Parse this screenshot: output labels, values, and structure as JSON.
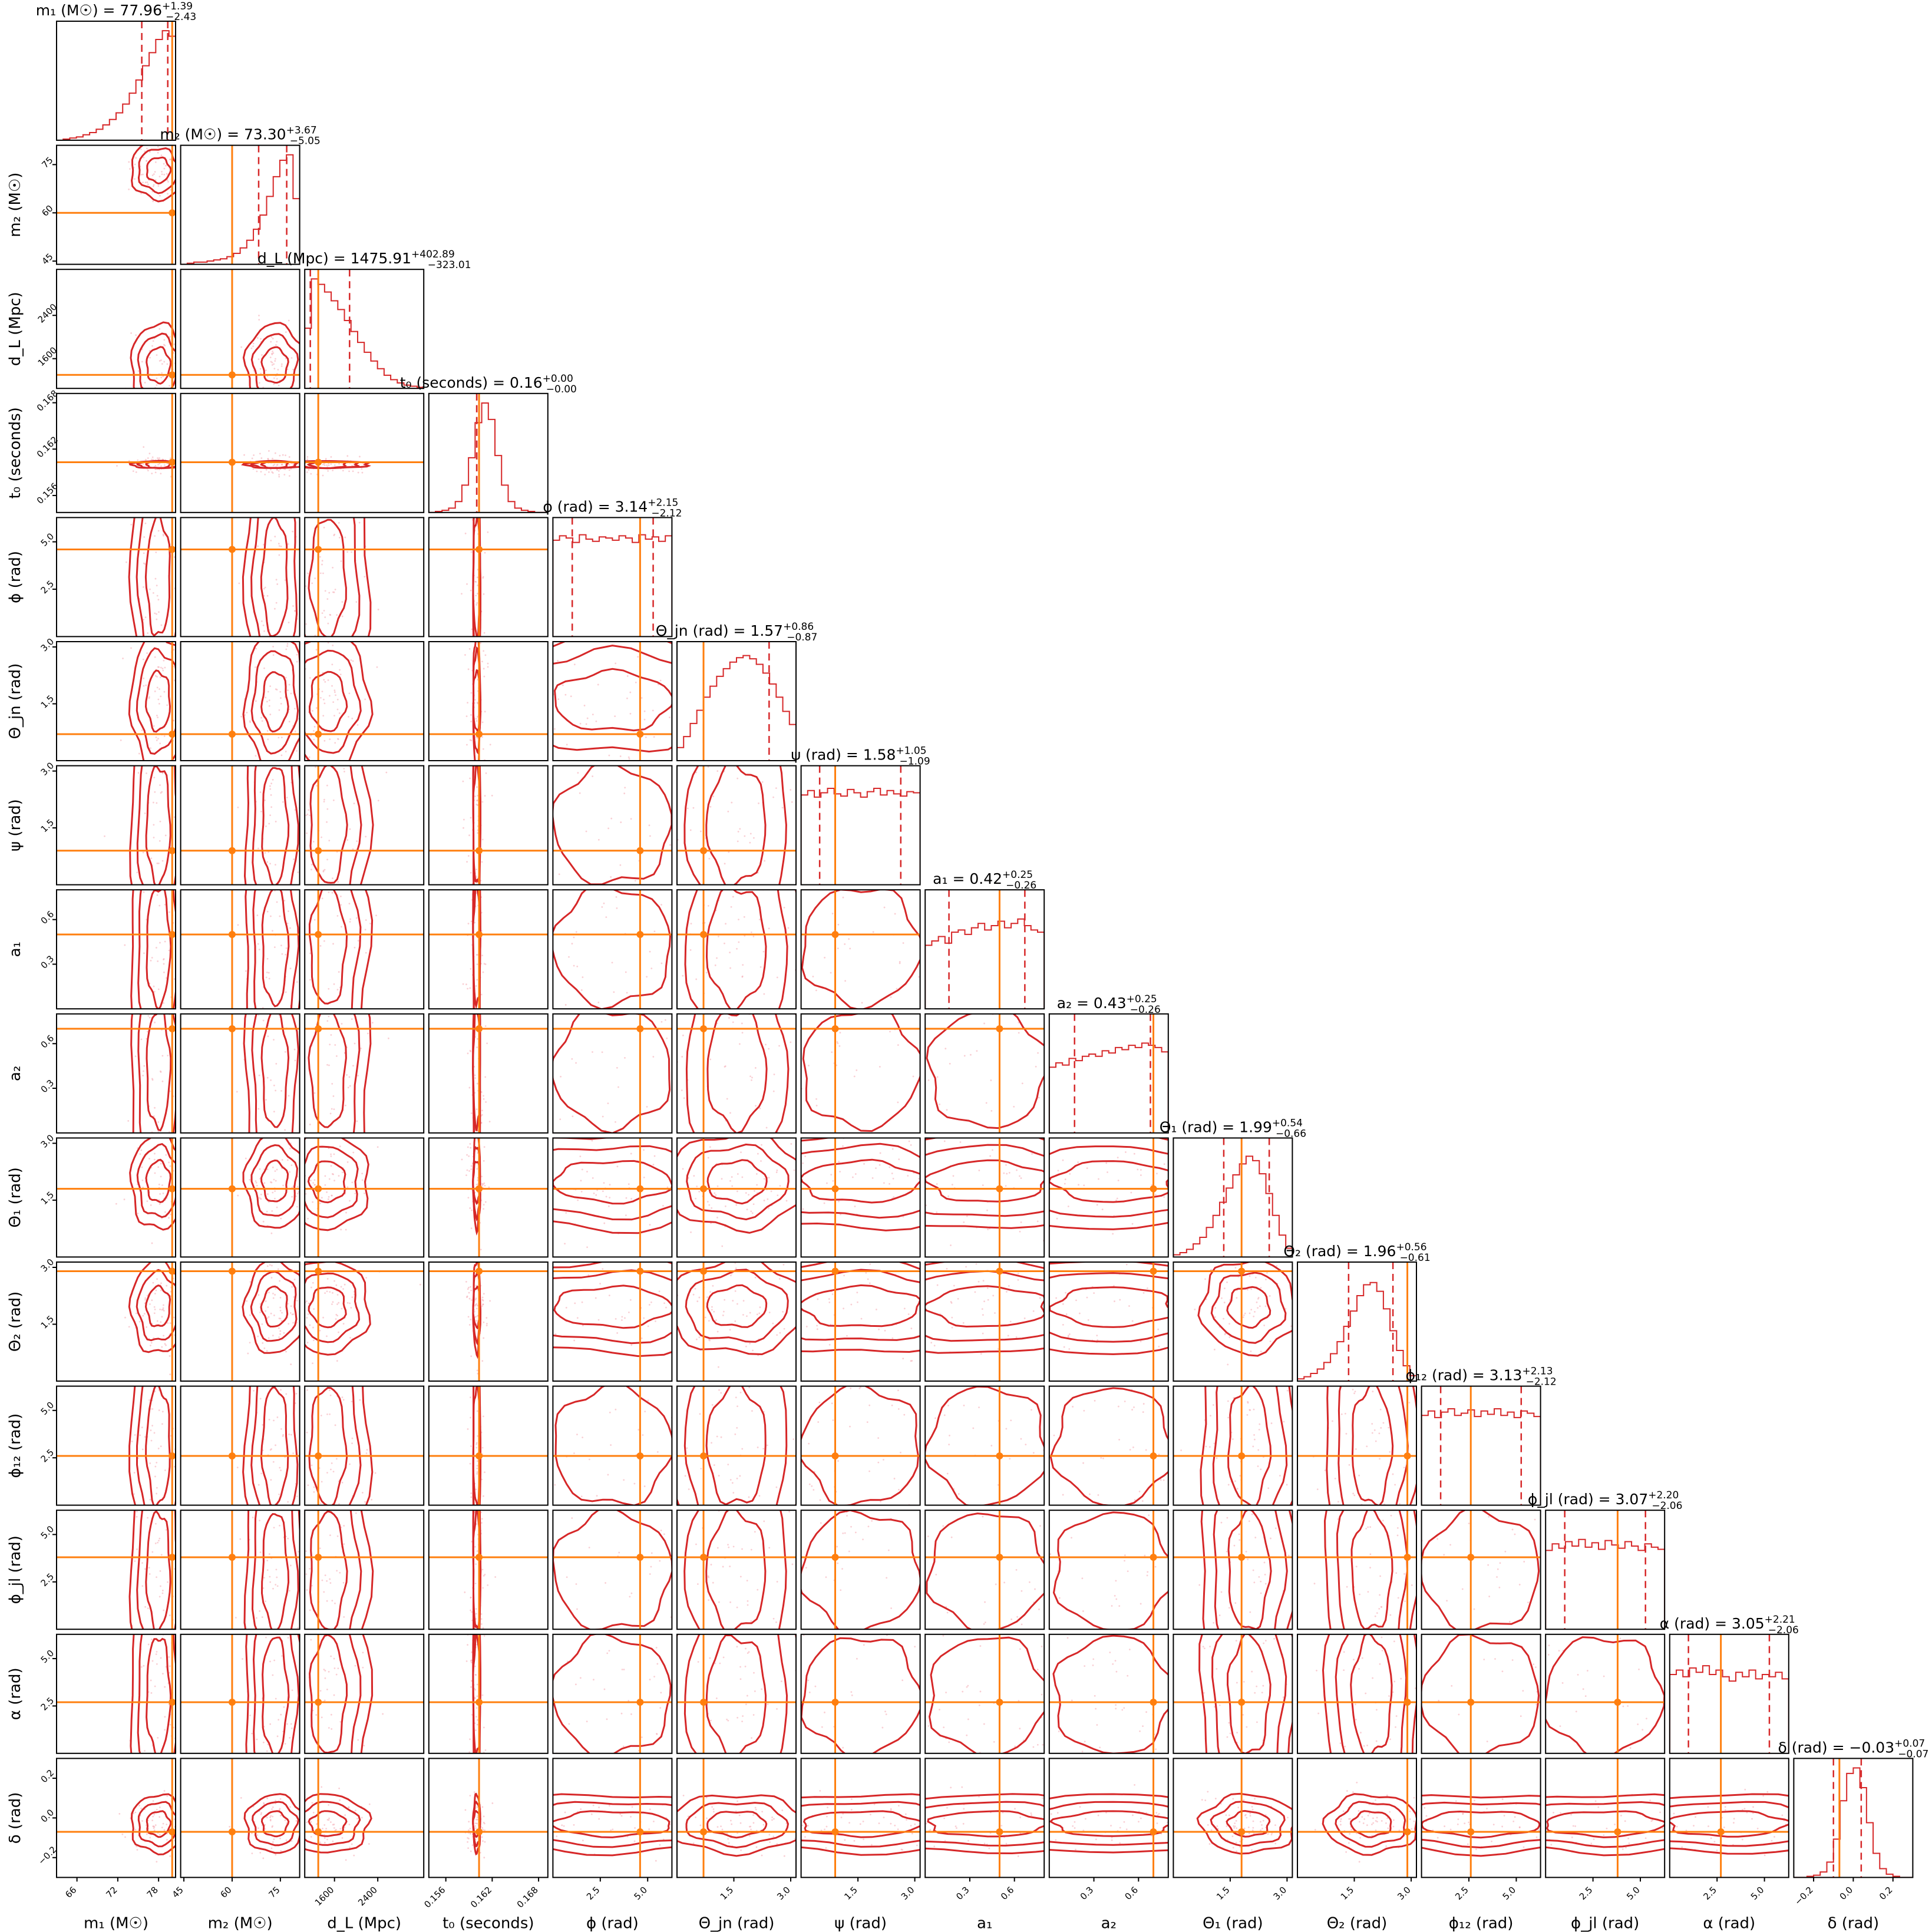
{
  "chart_data": {
    "type": "corner",
    "colors": {
      "posterior": "#d62728",
      "injection": "#ff7f0e",
      "samples": "#f4a7b1"
    },
    "parameters": [
      {
        "key": "m1",
        "label": "m₁ (M☉)",
        "title_main": "m₁ (M☉) = 77.96",
        "title_plus": "+1.39",
        "title_minus": "−2.43",
        "median": 77.96,
        "plus": 1.39,
        "minus": 2.43,
        "injected": 80.0,
        "range": [
          63,
          80.5
        ],
        "ticks": [
          66,
          72,
          78
        ],
        "tick_labels": [
          "66",
          "72",
          "78"
        ],
        "hist_shape": "rising",
        "hist": [
          0.0,
          0.01,
          0.02,
          0.03,
          0.05,
          0.07,
          0.1,
          0.14,
          0.19,
          0.25,
          0.33,
          0.43,
          0.55,
          0.68,
          0.8,
          0.92,
          1.0,
          0.95
        ]
      },
      {
        "key": "m2",
        "label": "m₂ (M☉)",
        "title_main": "m₂ (M☉) = 73.30",
        "title_plus": "+3.67",
        "title_minus": "−5.05",
        "median": 73.3,
        "plus": 3.67,
        "minus": 5.05,
        "injected": 60.0,
        "range": [
          44,
          81
        ],
        "ticks": [
          45,
          60,
          75
        ],
        "tick_labels": [
          "45",
          "60",
          "75"
        ],
        "hist_shape": "rising",
        "hist": [
          0.0,
          0.01,
          0.02,
          0.02,
          0.03,
          0.04,
          0.05,
          0.07,
          0.1,
          0.15,
          0.22,
          0.32,
          0.45,
          0.62,
          0.8,
          0.95,
          1.0,
          0.6
        ]
      },
      {
        "key": "dL",
        "label": "d_L (Mpc)",
        "title_main": "d_L (Mpc) = 1475.91",
        "title_plus": "+402.89",
        "title_minus": "−323.01",
        "median": 1475.91,
        "plus": 402.89,
        "minus": 323.01,
        "injected": 1300.0,
        "range": [
          1050,
          3250
        ],
        "ticks": [
          1600,
          2400
        ],
        "tick_labels": [
          "1600",
          "2400"
        ],
        "hist_shape": "falling",
        "hist": [
          0.55,
          1.0,
          0.95,
          0.88,
          0.8,
          0.72,
          0.62,
          0.52,
          0.42,
          0.33,
          0.25,
          0.18,
          0.12,
          0.08,
          0.05,
          0.03,
          0.02,
          0.01
        ]
      },
      {
        "key": "t0",
        "label": "t₀ (seconds)",
        "title_main": "t₀ (seconds) = 0.16",
        "title_plus": "+0.00",
        "title_minus": "−0.00",
        "median": 0.16,
        "plus": 0.0,
        "minus": 0.0,
        "injected": 0.1603,
        "range": [
          0.1538,
          0.1692
        ],
        "ticks": [
          0.156,
          0.162,
          0.168
        ],
        "tick_labels": [
          "0.156",
          "0.162",
          "0.168"
        ],
        "hist_shape": "peaked",
        "hist": [
          0.0,
          0.01,
          0.02,
          0.04,
          0.1,
          0.25,
          0.5,
          0.82,
          1.0,
          0.85,
          0.52,
          0.25,
          0.1,
          0.04,
          0.02,
          0.01,
          0.0,
          0.0
        ]
      },
      {
        "key": "phi",
        "label": "ϕ (rad)",
        "title_main": "ϕ (rad) = 3.14",
        "title_plus": "+2.15",
        "title_minus": "−2.12",
        "median": 3.14,
        "plus": 2.15,
        "minus": 2.12,
        "injected": 4.6,
        "range": [
          0,
          6.28
        ],
        "ticks": [
          2.5,
          5.0
        ],
        "tick_labels": [
          "2.5",
          "5.0"
        ],
        "hist_shape": "flat",
        "hist": [
          0.88,
          0.92,
          0.9,
          0.86,
          0.93,
          0.89,
          0.87,
          0.91,
          0.9,
          0.88,
          0.92,
          0.9,
          0.86,
          0.93,
          0.89,
          0.91,
          0.87,
          0.92
        ]
      },
      {
        "key": "theta_jn",
        "label": "Θ_jn (rad)",
        "title_main": "Θ_jn (rad) = 1.57",
        "title_plus": "+0.86",
        "title_minus": "−0.87",
        "median": 1.57,
        "plus": 0.86,
        "minus": 0.87,
        "injected": 0.7,
        "range": [
          0,
          3.14
        ],
        "ticks": [
          1.5,
          3.0
        ],
        "tick_labels": [
          "1.5",
          "3.0"
        ],
        "hist_shape": "hump",
        "hist": [
          0.12,
          0.22,
          0.34,
          0.46,
          0.58,
          0.68,
          0.77,
          0.84,
          0.9,
          0.94,
          0.96,
          0.93,
          0.88,
          0.8,
          0.7,
          0.58,
          0.45,
          0.33
        ]
      },
      {
        "key": "psi",
        "label": "ψ (rad)",
        "title_main": "ψ (rad) = 1.58",
        "title_plus": "+1.05",
        "title_minus": "−1.09",
        "median": 1.58,
        "plus": 1.05,
        "minus": 1.09,
        "injected": 0.9,
        "range": [
          0,
          3.14
        ],
        "ticks": [
          1.5,
          3.0
        ],
        "tick_labels": [
          "1.5",
          "3.0"
        ],
        "hist_shape": "flat",
        "hist": [
          0.82,
          0.86,
          0.8,
          0.84,
          0.88,
          0.83,
          0.81,
          0.87,
          0.84,
          0.8,
          0.85,
          0.88,
          0.82,
          0.86,
          0.83,
          0.81,
          0.85,
          0.84
        ]
      },
      {
        "key": "a1",
        "label": "a₁",
        "title_main": "a₁ = 0.42",
        "title_plus": "+0.25",
        "title_minus": "−0.26",
        "median": 0.42,
        "plus": 0.25,
        "minus": 0.26,
        "injected": 0.5,
        "range": [
          0,
          0.8
        ],
        "ticks": [
          0.3,
          0.6
        ],
        "tick_labels": [
          "0.3",
          "0.6"
        ],
        "hist_shape": "flat",
        "hist": [
          0.58,
          0.62,
          0.66,
          0.6,
          0.7,
          0.72,
          0.68,
          0.74,
          0.78,
          0.72,
          0.76,
          0.8,
          0.74,
          0.78,
          0.82,
          0.76,
          0.72,
          0.7
        ]
      },
      {
        "key": "a2",
        "label": "a₂",
        "title_main": "a₂ = 0.43",
        "title_plus": "+0.25",
        "title_minus": "−0.26",
        "median": 0.43,
        "plus": 0.25,
        "minus": 0.26,
        "injected": 0.7,
        "range": [
          0,
          0.8
        ],
        "ticks": [
          0.3,
          0.6
        ],
        "tick_labels": [
          "0.3",
          "0.6"
        ],
        "hist_shape": "flat",
        "hist": [
          0.6,
          0.64,
          0.62,
          0.68,
          0.66,
          0.7,
          0.72,
          0.7,
          0.75,
          0.73,
          0.78,
          0.76,
          0.8,
          0.78,
          0.82,
          0.8,
          0.78,
          0.74
        ]
      },
      {
        "key": "theta1",
        "label": "Θ₁ (rad)",
        "title_main": "Θ₁ (rad) = 1.99",
        "title_plus": "+0.54",
        "title_minus": "−0.66",
        "median": 1.99,
        "plus": 0.54,
        "minus": 0.66,
        "injected": 1.8,
        "range": [
          0,
          3.14
        ],
        "ticks": [
          1.5,
          3.0
        ],
        "tick_labels": [
          "1.5",
          "3.0"
        ],
        "hist_shape": "skewed",
        "hist": [
          0.02,
          0.04,
          0.07,
          0.12,
          0.18,
          0.27,
          0.38,
          0.5,
          0.63,
          0.75,
          0.85,
          0.92,
          0.88,
          0.76,
          0.58,
          0.38,
          0.2,
          0.08
        ]
      },
      {
        "key": "theta2",
        "label": "Θ₂ (rad)",
        "title_main": "Θ₂ (rad) = 1.96",
        "title_plus": "+0.56",
        "title_minus": "−0.61",
        "median": 1.96,
        "plus": 0.56,
        "minus": 0.61,
        "injected": 2.9,
        "range": [
          0,
          3.14
        ],
        "ticks": [
          1.5,
          3.0
        ],
        "tick_labels": [
          "1.5",
          "3.0"
        ],
        "hist_shape": "skewed",
        "hist": [
          0.02,
          0.04,
          0.07,
          0.11,
          0.17,
          0.25,
          0.36,
          0.5,
          0.64,
          0.78,
          0.88,
          0.9,
          0.82,
          0.66,
          0.46,
          0.28,
          0.14,
          0.05
        ]
      },
      {
        "key": "phi12",
        "label": "ϕ₁₂ (rad)",
        "title_main": "ϕ₁₂ (rad) = 3.13",
        "title_plus": "+2.13",
        "title_minus": "−2.12",
        "median": 3.13,
        "plus": 2.13,
        "minus": 2.12,
        "injected": 2.6,
        "range": [
          0,
          6.28
        ],
        "ticks": [
          2.5,
          5.0
        ],
        "tick_labels": [
          "2.5",
          "5.0"
        ],
        "hist_shape": "flat",
        "hist": [
          0.82,
          0.86,
          0.8,
          0.85,
          0.88,
          0.82,
          0.84,
          0.87,
          0.81,
          0.86,
          0.83,
          0.88,
          0.82,
          0.85,
          0.8,
          0.86,
          0.84,
          0.81
        ]
      },
      {
        "key": "phijl",
        "label": "ϕ_jl (rad)",
        "title_main": "ϕ_jl (rad) = 3.07",
        "title_plus": "+2.20",
        "title_minus": "−2.06",
        "median": 3.07,
        "plus": 2.2,
        "minus": 2.06,
        "injected": 3.8,
        "range": [
          0,
          6.28
        ],
        "ticks": [
          2.5,
          5.0
        ],
        "tick_labels": [
          "2.5",
          "5.0"
        ],
        "hist_shape": "flat",
        "hist": [
          0.72,
          0.78,
          0.74,
          0.8,
          0.76,
          0.82,
          0.75,
          0.79,
          0.73,
          0.81,
          0.77,
          0.74,
          0.8,
          0.76,
          0.72,
          0.78,
          0.75,
          0.73
        ]
      },
      {
        "key": "alpha",
        "label": "α (rad)",
        "title_main": "α (rad) = 3.05",
        "title_plus": "+2.21",
        "title_minus": "−2.06",
        "median": 3.05,
        "plus": 2.21,
        "minus": 2.06,
        "injected": 2.7,
        "range": [
          0,
          6.28
        ],
        "ticks": [
          2.5,
          5.0
        ],
        "tick_labels": [
          "2.5",
          "5.0"
        ],
        "hist_shape": "flat",
        "hist": [
          0.72,
          0.76,
          0.7,
          0.78,
          0.74,
          0.8,
          0.72,
          0.76,
          0.7,
          0.66,
          0.74,
          0.7,
          0.76,
          0.68,
          0.72,
          0.7,
          0.74,
          0.68
        ]
      },
      {
        "key": "delta",
        "label": "δ (rad)",
        "title_main": "δ (rad) = −0.03",
        "title_plus": "+0.07",
        "title_minus": "−0.07",
        "median": -0.03,
        "plus": 0.07,
        "minus": 0.07,
        "injected": -0.07,
        "range": [
          -0.3,
          0.3
        ],
        "ticks": [
          -0.2,
          0.0,
          0.2
        ],
        "tick_labels": [
          "−0.2",
          "0.0",
          "0.2"
        ],
        "hist_shape": "peaked",
        "hist": [
          0.0,
          0.0,
          0.01,
          0.02,
          0.05,
          0.14,
          0.35,
          0.7,
          0.95,
          1.0,
          0.82,
          0.5,
          0.22,
          0.08,
          0.03,
          0.01,
          0.0,
          0.0
        ]
      }
    ],
    "y_axis_ticks": {
      "m2": {
        "ticks": [
          45,
          60,
          75
        ],
        "tick_labels": [
          "45",
          "60",
          "75"
        ]
      },
      "dL": {
        "ticks": [
          1600,
          2400
        ],
        "tick_labels": [
          "1600",
          "2400"
        ]
      },
      "t0": {
        "ticks": [
          0.156,
          0.162,
          0.168
        ],
        "tick_labels": [
          "0.156",
          "0.162",
          "0.168"
        ]
      },
      "phi": {
        "ticks": [
          2.5,
          5.0
        ],
        "tick_labels": [
          "2.5",
          "5.0"
        ]
      },
      "theta_jn": {
        "ticks": [
          1.5,
          3.0
        ],
        "tick_labels": [
          "1.5",
          "3.0"
        ]
      },
      "psi": {
        "ticks": [
          1.5,
          3.0
        ],
        "tick_labels": [
          "1.5",
          "3.0"
        ]
      },
      "a1": {
        "ticks": [
          0.3,
          0.6
        ],
        "tick_labels": [
          "0.3",
          "0.6"
        ]
      },
      "a2": {
        "ticks": [
          0.3,
          0.6
        ],
        "tick_labels": [
          "0.3",
          "0.6"
        ]
      },
      "theta1": {
        "ticks": [
          1.5,
          3.0
        ],
        "tick_labels": [
          "1.5",
          "3.0"
        ]
      },
      "theta2": {
        "ticks": [
          1.5,
          3.0
        ],
        "tick_labels": [
          "1.5",
          "3.0"
        ]
      },
      "phi12": {
        "ticks": [
          2.5,
          5.0
        ],
        "tick_labels": [
          "2.5",
          "5.0"
        ]
      },
      "phijl": {
        "ticks": [
          2.5,
          5.0
        ],
        "tick_labels": [
          "2.5",
          "5.0"
        ]
      },
      "alpha": {
        "ticks": [
          2.5,
          5.0
        ],
        "tick_labels": [
          "2.5",
          "5.0"
        ]
      },
      "delta": {
        "ticks": [
          -0.2,
          0.0,
          0.2
        ],
        "tick_labels": [
          "−0.2",
          "0.0",
          "0.2"
        ]
      }
    }
  }
}
